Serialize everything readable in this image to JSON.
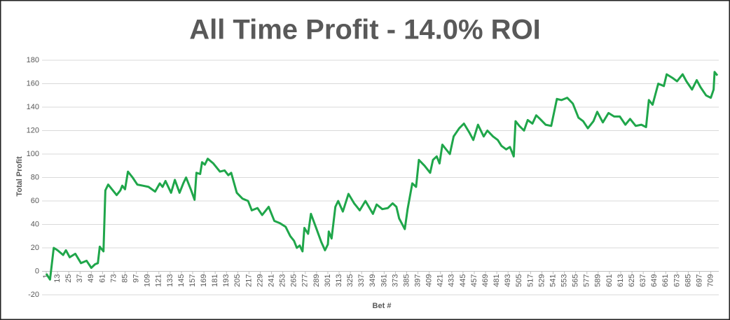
{
  "chart_data": {
    "type": "line",
    "title": "All Time Profit - 14.0% ROI",
    "x_label": "Bet #",
    "y_label": "Total Profit",
    "xlim": [
      1,
      716
    ],
    "xticks": [
      1,
      13,
      25,
      37,
      49,
      61,
      73,
      85,
      97,
      109,
      121,
      133,
      145,
      157,
      169,
      181,
      193,
      205,
      217,
      229,
      241,
      253,
      265,
      277,
      289,
      301,
      313,
      325,
      337,
      349,
      361,
      373,
      385,
      397,
      409,
      421,
      433,
      445,
      457,
      469,
      481,
      493,
      505,
      517,
      529,
      541,
      553,
      565,
      577,
      589,
      601,
      613,
      625,
      637,
      649,
      661,
      673,
      685,
      697,
      709
    ],
    "ylim": [
      -20,
      180
    ],
    "yticks": [
      -20,
      0,
      20,
      40,
      60,
      80,
      100,
      120,
      140,
      160,
      180
    ],
    "grid": true,
    "series": [
      {
        "name": "Total Profit",
        "color": "#1fa64a",
        "x": [
          1,
          5,
          9,
          13,
          19,
          22,
          26,
          32,
          38,
          44,
          49,
          53,
          56,
          58,
          62,
          64,
          67,
          71,
          76,
          80,
          82,
          85,
          88,
          93,
          98,
          104,
          110,
          117,
          122,
          125,
          128,
          134,
          138,
          143,
          147,
          150,
          155,
          159,
          161,
          165,
          167,
          170,
          173,
          179,
          186,
          191,
          195,
          198,
          204,
          210,
          216,
          220,
          226,
          231,
          238,
          244,
          250,
          256,
          261,
          265,
          268,
          271,
          274,
          276,
          280,
          283,
          289,
          294,
          298,
          301,
          302,
          305,
          309,
          312,
          317,
          323,
          329,
          335,
          341,
          349,
          353,
          359,
          365,
          370,
          374,
          377,
          383,
          386,
          391,
          395,
          398,
          404,
          410,
          413,
          417,
          420,
          423,
          428,
          431,
          435,
          441,
          446,
          452,
          456,
          461,
          467,
          471,
          477,
          482,
          486,
          491,
          495,
          499,
          501,
          505,
          510,
          514,
          519,
          523,
          527,
          533,
          539,
          545,
          550,
          556,
          562,
          568,
          573,
          578,
          584,
          588,
          594,
          600,
          606,
          612,
          618,
          623,
          629,
          635,
          640,
          643,
          647,
          653,
          659,
          662,
          668,
          673,
          679,
          683,
          689,
          694,
          698,
          704,
          709,
          712,
          713,
          716
        ],
        "values": [
          -2,
          -7,
          20,
          18,
          14,
          18,
          12,
          15,
          7,
          9,
          3,
          6,
          7,
          21,
          17,
          69,
          74,
          70,
          65,
          69,
          73,
          70,
          85,
          80,
          74,
          73,
          72,
          68,
          75,
          72,
          77,
          67,
          78,
          67,
          75,
          80,
          70,
          61,
          84,
          83,
          93,
          91,
          96,
          92,
          85,
          86,
          82,
          84,
          67,
          62,
          60,
          52,
          54,
          48,
          55,
          43,
          41,
          38,
          30,
          26,
          20,
          22,
          17,
          37,
          32,
          49,
          36,
          25,
          18,
          23,
          34,
          28,
          55,
          60,
          51,
          66,
          58,
          52,
          60,
          49,
          57,
          53,
          54,
          58,
          55,
          45,
          36,
          53,
          75,
          72,
          95,
          90,
          84,
          95,
          98,
          92,
          108,
          103,
          100,
          115,
          122,
          126,
          118,
          112,
          125,
          115,
          120,
          115,
          112,
          107,
          104,
          106,
          98,
          128,
          124,
          120,
          129,
          126,
          133,
          130,
          125,
          124,
          147,
          146,
          148,
          143,
          131,
          128,
          122,
          128,
          136,
          127,
          135,
          132,
          132,
          125,
          130,
          124,
          125,
          123,
          146,
          142,
          160,
          158,
          168,
          165,
          162,
          168,
          162,
          155,
          163,
          157,
          150,
          148,
          155,
          170,
          167
        ]
      }
    ]
  }
}
